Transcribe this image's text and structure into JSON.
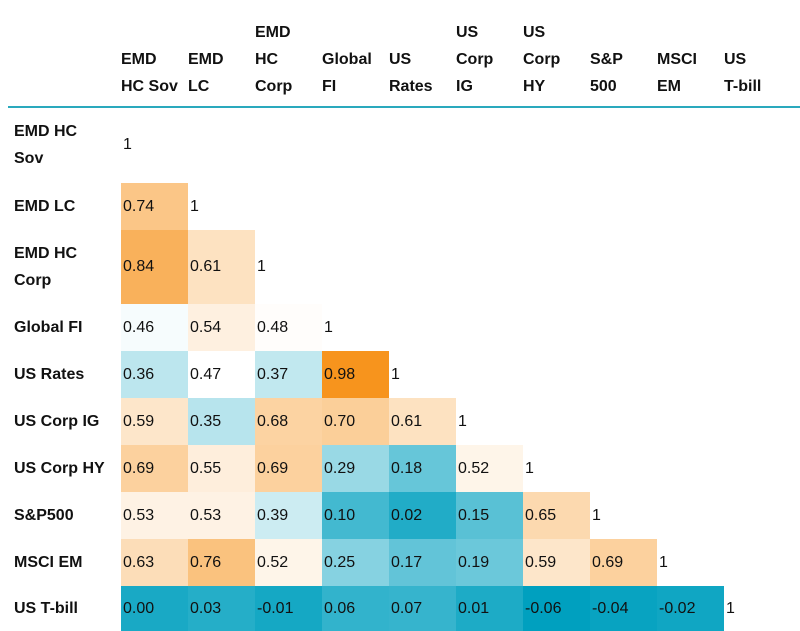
{
  "chart_data": {
    "type": "heatmap",
    "labels_columns": [
      "EMD\nHC Sov",
      "EMD\nLC",
      "EMD\nHC\nCorp",
      "Global\nFI",
      "US\nRates",
      "US\nCorp\nIG",
      "US\nCorp\nHY",
      "S&P\n500",
      "MSCI\nEM",
      "US\nT-bill"
    ],
    "labels_rows": [
      "EMD HC\nSov",
      "EMD LC",
      "EMD HC\nCorp",
      "Global FI",
      "US Rates",
      "US Corp IG",
      "US Corp HY",
      "S&P500",
      "MSCI EM",
      "US T-bill"
    ],
    "values_text": [
      [
        "1"
      ],
      [
        "0.74",
        "1"
      ],
      [
        "0.84",
        "0.61",
        "1"
      ],
      [
        "0.46",
        "0.54",
        "0.48",
        "1"
      ],
      [
        "0.36",
        "0.47",
        "0.37",
        "0.98",
        "1"
      ],
      [
        "0.59",
        "0.35",
        "0.68",
        "0.70",
        "0.61",
        "1"
      ],
      [
        "0.69",
        "0.55",
        "0.69",
        "0.29",
        "0.18",
        "0.52",
        "1"
      ],
      [
        "0.53",
        "0.53",
        "0.39",
        "0.10",
        "0.02",
        "0.15",
        "0.65",
        "1"
      ],
      [
        "0.63",
        "0.76",
        "0.52",
        "0.25",
        "0.17",
        "0.19",
        "0.59",
        "0.69",
        "1"
      ],
      [
        "0.00",
        "0.03",
        "-0.01",
        "0.06",
        "0.07",
        "0.01",
        "-0.06",
        "-0.04",
        "-0.02",
        "1"
      ]
    ],
    "color_scale": {
      "low": "#00A0BF",
      "mid": "#FFFFFF",
      "high": "#F7941D"
    },
    "diagonal_uncolored": true
  }
}
